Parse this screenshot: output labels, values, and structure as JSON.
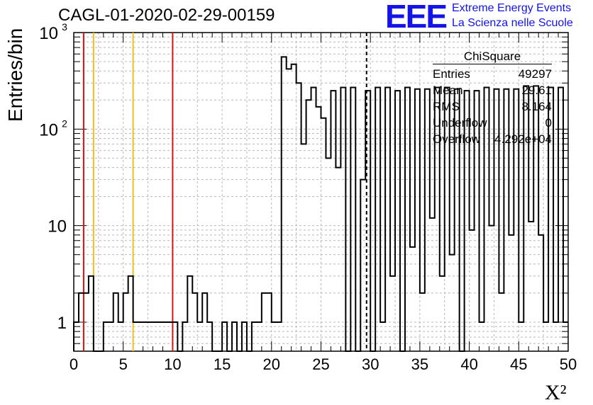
{
  "header": {
    "title": "CAGL-01-2020-02-29-00159",
    "logo_text": "EEE",
    "logo_line1": "Extreme Energy Events",
    "logo_line2": "La Scienza nelle Scuole"
  },
  "stats_box": {
    "name": "ChiSquare",
    "rows": [
      {
        "label": "Entries",
        "value": "49297"
      },
      {
        "label": "Mean",
        "value": "29.61"
      },
      {
        "label": "RMS",
        "value": "8.164"
      },
      {
        "label": "Underflow",
        "value": "0"
      },
      {
        "label": "Overflow",
        "value": "4.292e+04"
      }
    ]
  },
  "colors": {
    "red_line": "#dd1111",
    "yellow_line": "#f0c020",
    "logo": "#1414e6"
  },
  "chart_data": {
    "type": "histogram",
    "xlabel": "X²",
    "ylabel": "Entries/bin",
    "xlim": [
      0,
      50
    ],
    "ylim": [
      0.5,
      1000
    ],
    "yscale": "log",
    "grid": true,
    "bin_width": 0.5,
    "x_ticks": [
      0,
      5,
      10,
      15,
      20,
      25,
      30,
      35,
      40,
      45,
      50
    ],
    "y_tick_labels": [
      "1",
      "10",
      "10²",
      "10³"
    ],
    "values": [
      1,
      2,
      2,
      1,
      0,
      1,
      1,
      2,
      1,
      2,
      2,
      3,
      1,
      1,
      1,
      1,
      2,
      2,
      1,
      1,
      0,
      1,
      1,
      1,
      1,
      1,
      1,
      0,
      1,
      0,
      2,
      2,
      2,
      1,
      2,
      1,
      0,
      1,
      1,
      0,
      1,
      0,
      1,
      0,
      0,
      1,
      1,
      1,
      1,
      1,
      1,
      1,
      1,
      1,
      1,
      1,
      2,
      2,
      1,
      1,
      1,
      1,
      1,
      1,
      1,
      1,
      1,
      1,
      1,
      1,
      1,
      1,
      2,
      2,
      1,
      1,
      1,
      1,
      1,
      1,
      2,
      2,
      2,
      3,
      2,
      2,
      2,
      2,
      1,
      1,
      1,
      1,
      0,
      0,
      2,
      2,
      1,
      1,
      1,
      1,
      1,
      1,
      1,
      1,
      1,
      1,
      1,
      1,
      1,
      1,
      1,
      1,
      1,
      2,
      2,
      2,
      1,
      1,
      1,
      1,
      1,
      1,
      1,
      1,
      1,
      1,
      1,
      1,
      1,
      1,
      1,
      1,
      1,
      1,
      1,
      1,
      1,
      1,
      1,
      1,
      1,
      1,
      1,
      1,
      1,
      1,
      1,
      1,
      1,
      1,
      1,
      1,
      1,
      1,
      1,
      1,
      1,
      1,
      1,
      1,
      1,
      1,
      1,
      1,
      1,
      1,
      1,
      1,
      1,
      1,
      1,
      1,
      1,
      1,
      1,
      1,
      1,
      1,
      1,
      1,
      1,
      1,
      1,
      1
    ],
    "hist_bins": [
      {
        "x0": 0,
        "y": 1
      },
      {
        "x0": 0.5,
        "y": 2
      },
      {
        "x0": 1.5,
        "y": 3
      },
      {
        "x0": 2,
        "y": 0
      },
      {
        "x0": 3,
        "y": 1
      },
      {
        "x0": 4,
        "y": 2
      },
      {
        "x0": 4.5,
        "y": 1
      },
      {
        "x0": 5,
        "y": 2
      },
      {
        "x0": 5.5,
        "y": 3
      },
      {
        "x0": 6,
        "y": 1
      },
      {
        "x0": 7,
        "y": 1
      },
      {
        "x0": 8,
        "y": 1
      },
      {
        "x0": 9,
        "y": 1
      },
      {
        "x0": 10,
        "y": 1
      },
      {
        "x0": 10.5,
        "y": 0
      },
      {
        "x0": 11,
        "y": 1
      },
      {
        "x0": 11.5,
        "y": 3
      },
      {
        "x0": 12,
        "y": 2
      },
      {
        "x0": 12.5,
        "y": 1
      },
      {
        "x0": 13,
        "y": 2
      },
      {
        "x0": 13.5,
        "y": 1
      },
      {
        "x0": 14,
        "y": 0
      },
      {
        "x0": 15,
        "y": 1
      },
      {
        "x0": 15.5,
        "y": 0
      },
      {
        "x0": 16,
        "y": 1
      },
      {
        "x0": 16.5,
        "y": 0
      },
      {
        "x0": 17,
        "y": 1
      },
      {
        "x0": 17.5,
        "y": 0
      },
      {
        "x0": 18,
        "y": 1
      },
      {
        "x0": 19,
        "y": 2
      },
      {
        "x0": 20,
        "y": 1
      },
      {
        "x0": 21,
        "y": 560
      },
      {
        "x0": 21.5,
        "y": 420
      },
      {
        "x0": 22,
        "y": 470
      },
      {
        "x0": 22.5,
        "y": 300
      },
      {
        "x0": 23,
        "y": 70
      },
      {
        "x0": 23.5,
        "y": 200
      },
      {
        "x0": 24,
        "y": 270
      },
      {
        "x0": 24.5,
        "y": 170
      },
      {
        "x0": 25,
        "y": 130
      },
      {
        "x0": 25.5,
        "y": 50
      },
      {
        "x0": 26,
        "y": 250
      },
      {
        "x0": 26.5,
        "y": 40
      },
      {
        "x0": 27,
        "y": 270
      },
      {
        "x0": 27.5,
        "y": 0
      },
      {
        "x0": 28,
        "y": 270
      },
      {
        "x0": 28.5,
        "y": 0
      },
      {
        "x0": 29,
        "y": 30
      },
      {
        "x0": 29.5,
        "y": 250
      },
      {
        "x0": 30,
        "y": 0
      },
      {
        "x0": 30.5,
        "y": 270
      },
      {
        "x0": 31,
        "y": 1
      },
      {
        "x0": 31.5,
        "y": 270
      },
      {
        "x0": 32,
        "y": 3
      },
      {
        "x0": 32.5,
        "y": 250
      },
      {
        "x0": 33,
        "y": 0
      },
      {
        "x0": 33.5,
        "y": 270
      },
      {
        "x0": 34,
        "y": 6
      },
      {
        "x0": 34.5,
        "y": 260
      },
      {
        "x0": 35,
        "y": 2
      },
      {
        "x0": 35.5,
        "y": 260
      },
      {
        "x0": 36,
        "y": 12
      },
      {
        "x0": 36.5,
        "y": 270
      },
      {
        "x0": 37,
        "y": 3
      },
      {
        "x0": 37.5,
        "y": 270
      },
      {
        "x0": 38,
        "y": 5
      },
      {
        "x0": 38.5,
        "y": 260
      },
      {
        "x0": 39,
        "y": 0
      },
      {
        "x0": 39.5,
        "y": 250
      },
      {
        "x0": 40,
        "y": 9
      },
      {
        "x0": 40.5,
        "y": 250
      },
      {
        "x0": 41,
        "y": 1
      },
      {
        "x0": 41.5,
        "y": 270
      },
      {
        "x0": 42,
        "y": 10
      },
      {
        "x0": 42.5,
        "y": 260
      },
      {
        "x0": 43,
        "y": 2
      },
      {
        "x0": 43.5,
        "y": 260
      },
      {
        "x0": 44,
        "y": 8
      },
      {
        "x0": 44.5,
        "y": 260
      },
      {
        "x0": 45,
        "y": 1
      },
      {
        "x0": 45.5,
        "y": 280
      },
      {
        "x0": 46,
        "y": 11
      },
      {
        "x0": 46.5,
        "y": 280
      },
      {
        "x0": 47,
        "y": 8
      },
      {
        "x0": 47.5,
        "y": 1
      },
      {
        "x0": 48,
        "y": 270
      },
      {
        "x0": 48.5,
        "y": 1
      },
      {
        "x0": 49,
        "y": 270
      },
      {
        "x0": 49.5,
        "y": 1
      },
      {
        "x0": 50,
        "y": 15
      }
    ],
    "vertical_lines": [
      {
        "x": 1,
        "color": "red"
      },
      {
        "x": 2,
        "color": "yellow"
      },
      {
        "x": 6,
        "color": "yellow"
      },
      {
        "x": 10,
        "color": "red"
      },
      {
        "x": 29.61,
        "color": "black",
        "style": "dashed"
      }
    ]
  }
}
